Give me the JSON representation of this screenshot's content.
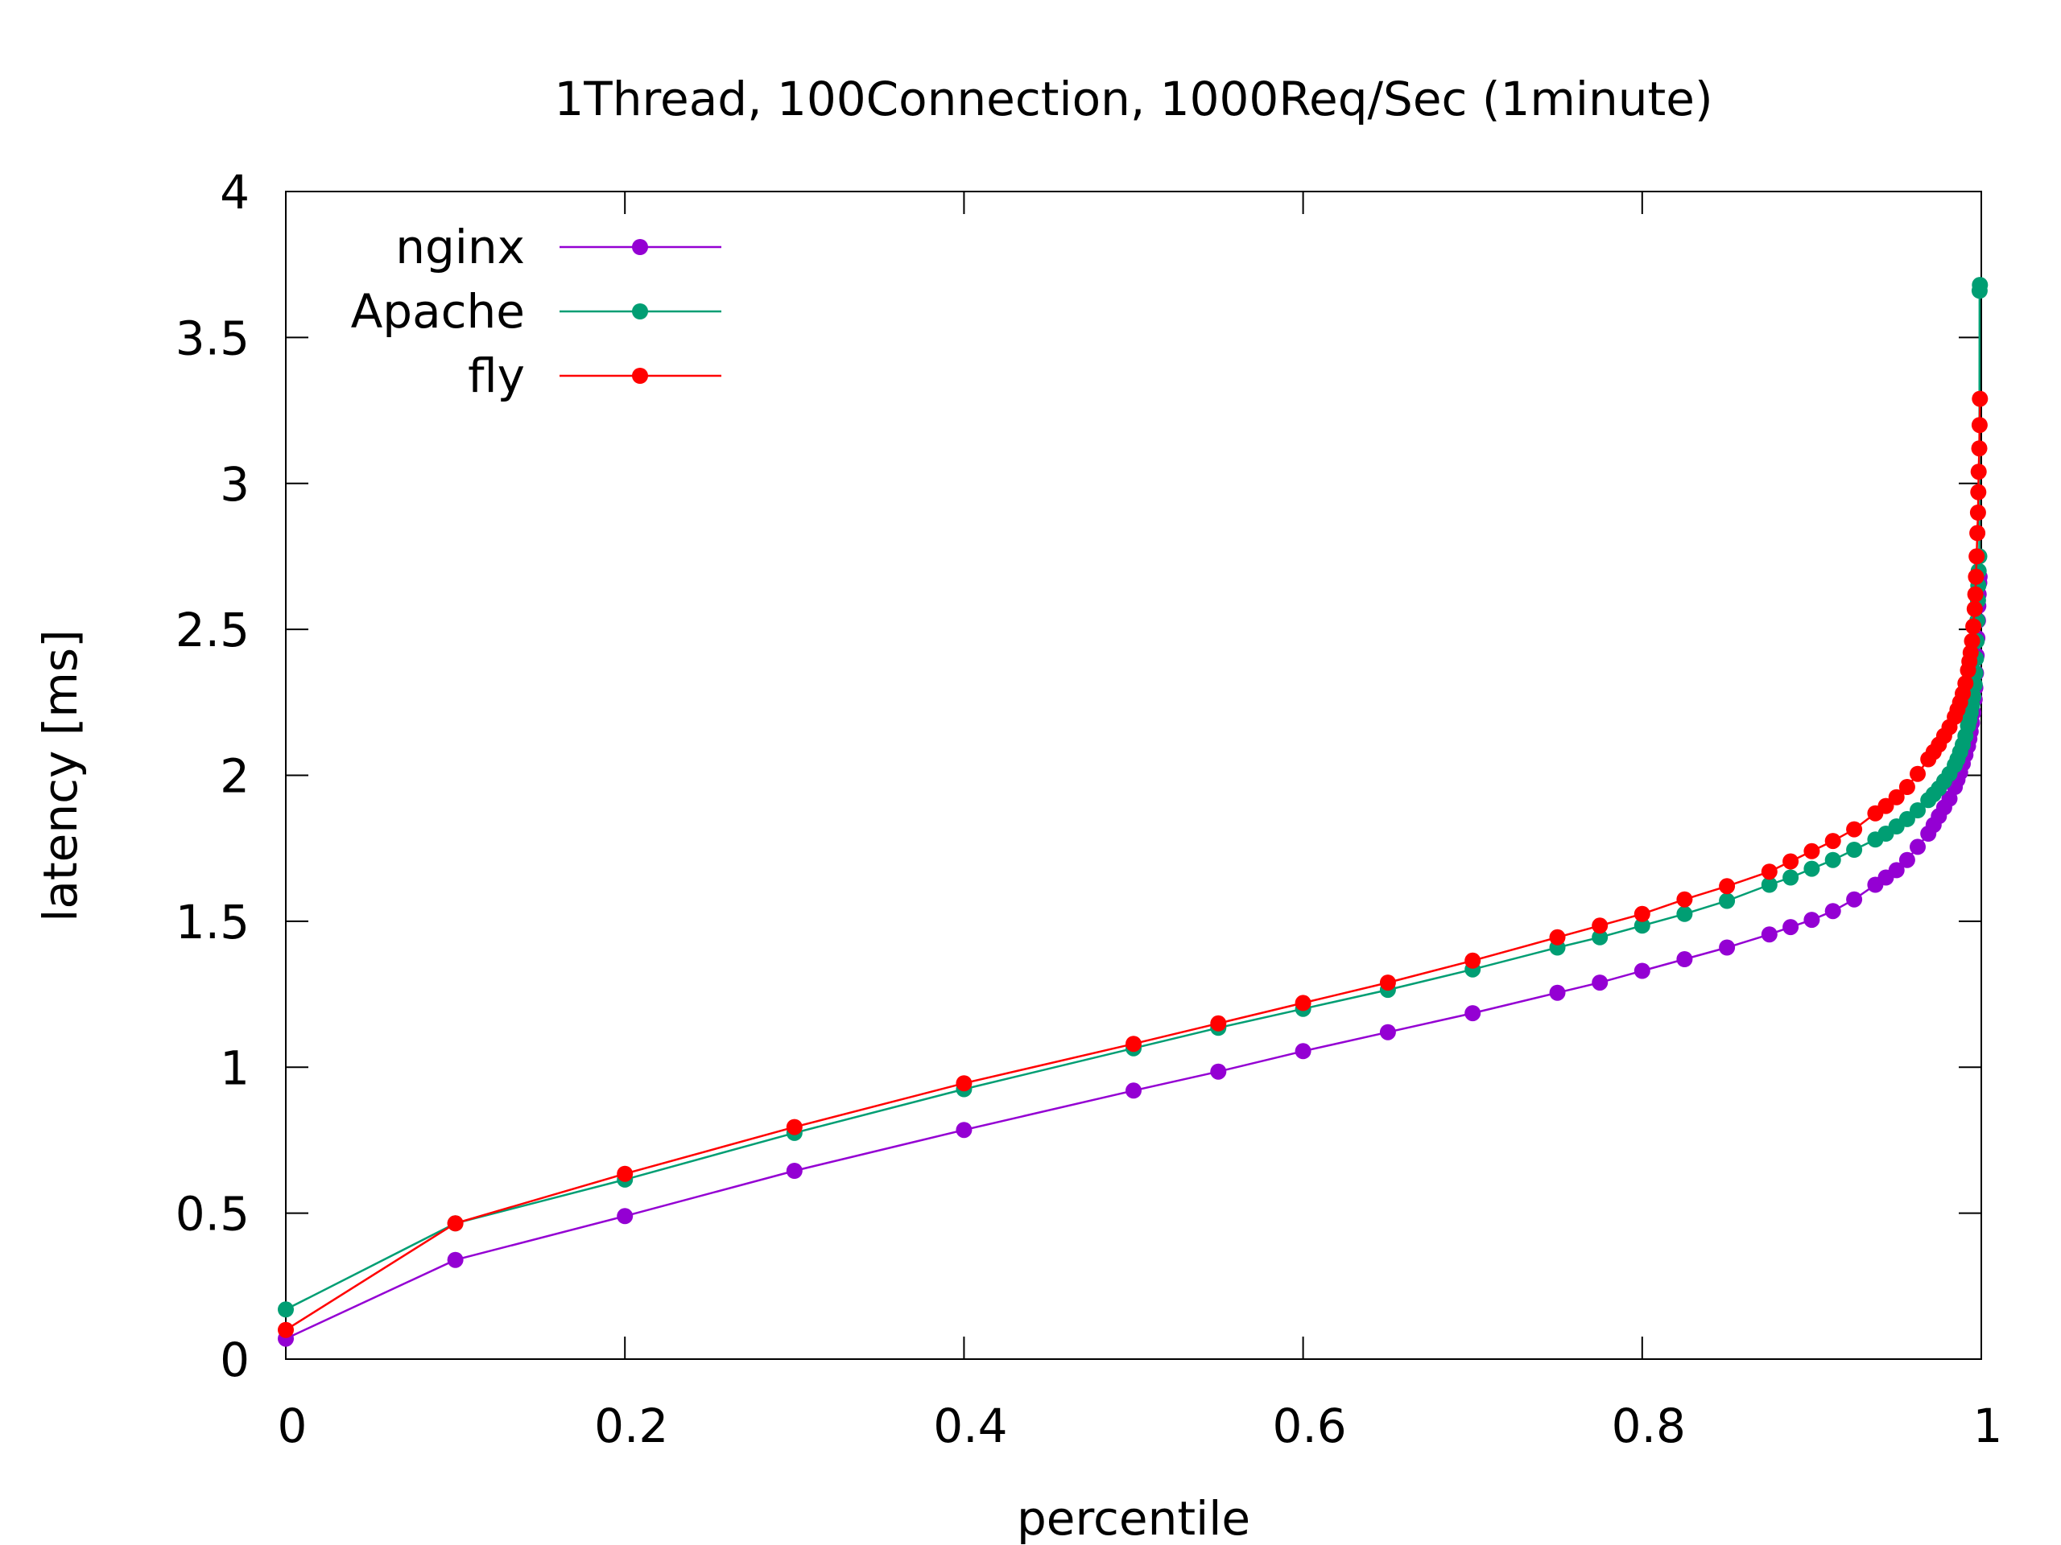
{
  "chart_data": {
    "type": "line",
    "title": "1Thread, 100Connection, 1000Req/Sec (1minute)",
    "xlabel": "percentile",
    "ylabel": "latency [ms]",
    "xlim": [
      0,
      1
    ],
    "ylim": [
      0,
      4
    ],
    "x_ticks": [
      "0",
      "0.2",
      "0.4",
      "0.6",
      "0.8",
      "1"
    ],
    "y_ticks": [
      "0",
      "0.5",
      "1",
      "1.5",
      "2",
      "2.5",
      "3",
      "3.5",
      "4"
    ],
    "grid": false,
    "legend_position": "top-left",
    "series": [
      {
        "name": "nginx",
        "color": "#9400d3",
        "points": [
          [
            0.0,
            0.07
          ],
          [
            0.1,
            0.34
          ],
          [
            0.2,
            0.49
          ],
          [
            0.3,
            0.645
          ],
          [
            0.4,
            0.785
          ],
          [
            0.5,
            0.92
          ],
          [
            0.55,
            0.985
          ],
          [
            0.6,
            1.055
          ],
          [
            0.65,
            1.12
          ],
          [
            0.7,
            1.185
          ],
          [
            0.75,
            1.255
          ],
          [
            0.775,
            1.29
          ],
          [
            0.8,
            1.33
          ],
          [
            0.825,
            1.37
          ],
          [
            0.85,
            1.41
          ],
          [
            0.875,
            1.455
          ],
          [
            0.8875,
            1.48
          ],
          [
            0.9,
            1.505
          ],
          [
            0.9125,
            1.535
          ],
          [
            0.925,
            1.575
          ],
          [
            0.9375,
            1.625
          ],
          [
            0.94375,
            1.65
          ],
          [
            0.95,
            1.675
          ],
          [
            0.95625,
            1.71
          ],
          [
            0.9625,
            1.755
          ],
          [
            0.96875,
            1.8
          ],
          [
            0.971875,
            1.83
          ],
          [
            0.975,
            1.86
          ],
          [
            0.978125,
            1.89
          ],
          [
            0.98125,
            1.92
          ],
          [
            0.984375,
            1.96
          ],
          [
            0.9859375,
            1.985
          ],
          [
            0.9875,
            2.01
          ],
          [
            0.9890625,
            2.04
          ],
          [
            0.990625,
            2.07
          ],
          [
            0.9921875,
            2.1
          ],
          [
            0.99296875,
            2.125
          ],
          [
            0.99375,
            2.15
          ],
          [
            0.99453125,
            2.18
          ],
          [
            0.9953125,
            2.215
          ],
          [
            0.99609375,
            2.26
          ],
          [
            0.996484375,
            2.3
          ],
          [
            0.996875,
            2.35
          ],
          [
            0.997265625,
            2.41
          ],
          [
            0.99765625,
            2.47
          ],
          [
            0.998046875,
            2.53
          ],
          [
            0.998242188,
            2.58
          ],
          [
            0.9984375,
            2.62
          ],
          [
            0.998828125,
            2.66
          ],
          [
            0.999,
            2.68
          ]
        ]
      },
      {
        "name": "Apache",
        "color": "#009e73",
        "points": [
          [
            0.0,
            0.17
          ],
          [
            0.1,
            0.465
          ],
          [
            0.2,
            0.615
          ],
          [
            0.3,
            0.775
          ],
          [
            0.4,
            0.925
          ],
          [
            0.5,
            1.065
          ],
          [
            0.55,
            1.135
          ],
          [
            0.6,
            1.2
          ],
          [
            0.65,
            1.265
          ],
          [
            0.7,
            1.335
          ],
          [
            0.75,
            1.41
          ],
          [
            0.775,
            1.445
          ],
          [
            0.8,
            1.485
          ],
          [
            0.825,
            1.525
          ],
          [
            0.85,
            1.57
          ],
          [
            0.875,
            1.625
          ],
          [
            0.8875,
            1.65
          ],
          [
            0.9,
            1.68
          ],
          [
            0.9125,
            1.71
          ],
          [
            0.925,
            1.745
          ],
          [
            0.9375,
            1.78
          ],
          [
            0.94375,
            1.8
          ],
          [
            0.95,
            1.825
          ],
          [
            0.95625,
            1.85
          ],
          [
            0.9625,
            1.88
          ],
          [
            0.96875,
            1.915
          ],
          [
            0.971875,
            1.935
          ],
          [
            0.975,
            1.955
          ],
          [
            0.978125,
            1.98
          ],
          [
            0.98125,
            2.005
          ],
          [
            0.984375,
            2.035
          ],
          [
            0.9859375,
            2.055
          ],
          [
            0.9875,
            2.08
          ],
          [
            0.9890625,
            2.105
          ],
          [
            0.990625,
            2.135
          ],
          [
            0.9921875,
            2.17
          ],
          [
            0.99296875,
            2.19
          ],
          [
            0.99375,
            2.215
          ],
          [
            0.99453125,
            2.24
          ],
          [
            0.9953125,
            2.27
          ],
          [
            0.99609375,
            2.31
          ],
          [
            0.996484375,
            2.35
          ],
          [
            0.996875,
            2.4
          ],
          [
            0.997265625,
            2.46
          ],
          [
            0.99765625,
            2.53
          ],
          [
            0.998046875,
            2.6
          ],
          [
            0.998242188,
            2.65
          ],
          [
            0.9984375,
            2.7
          ],
          [
            0.998828125,
            2.75
          ],
          [
            0.999,
            3.66
          ],
          [
            0.9992,
            3.68
          ]
        ]
      },
      {
        "name": "fly",
        "color": "#ff0000",
        "points": [
          [
            0.0,
            0.1
          ],
          [
            0.1,
            0.465
          ],
          [
            0.2,
            0.635
          ],
          [
            0.3,
            0.795
          ],
          [
            0.4,
            0.945
          ],
          [
            0.5,
            1.08
          ],
          [
            0.55,
            1.15
          ],
          [
            0.6,
            1.22
          ],
          [
            0.65,
            1.29
          ],
          [
            0.7,
            1.365
          ],
          [
            0.75,
            1.445
          ],
          [
            0.775,
            1.485
          ],
          [
            0.8,
            1.525
          ],
          [
            0.825,
            1.575
          ],
          [
            0.85,
            1.62
          ],
          [
            0.875,
            1.67
          ],
          [
            0.8875,
            1.705
          ],
          [
            0.9,
            1.74
          ],
          [
            0.9125,
            1.775
          ],
          [
            0.925,
            1.815
          ],
          [
            0.9375,
            1.87
          ],
          [
            0.94375,
            1.895
          ],
          [
            0.95,
            1.925
          ],
          [
            0.95625,
            1.96
          ],
          [
            0.9625,
            2.005
          ],
          [
            0.96875,
            2.055
          ],
          [
            0.971875,
            2.08
          ],
          [
            0.975,
            2.105
          ],
          [
            0.978125,
            2.135
          ],
          [
            0.98125,
            2.165
          ],
          [
            0.984375,
            2.2
          ],
          [
            0.9859375,
            2.225
          ],
          [
            0.9875,
            2.25
          ],
          [
            0.9890625,
            2.28
          ],
          [
            0.990625,
            2.315
          ],
          [
            0.9921875,
            2.36
          ],
          [
            0.99296875,
            2.39
          ],
          [
            0.99375,
            2.42
          ],
          [
            0.99453125,
            2.46
          ],
          [
            0.9953125,
            2.51
          ],
          [
            0.99609375,
            2.57
          ],
          [
            0.996484375,
            2.62
          ],
          [
            0.996875,
            2.68
          ],
          [
            0.997265625,
            2.75
          ],
          [
            0.99765625,
            2.83
          ],
          [
            0.998046875,
            2.9
          ],
          [
            0.998242188,
            2.97
          ],
          [
            0.9984375,
            3.04
          ],
          [
            0.998828125,
            3.12
          ],
          [
            0.999,
            3.2
          ],
          [
            0.9992,
            3.29
          ]
        ]
      }
    ]
  }
}
